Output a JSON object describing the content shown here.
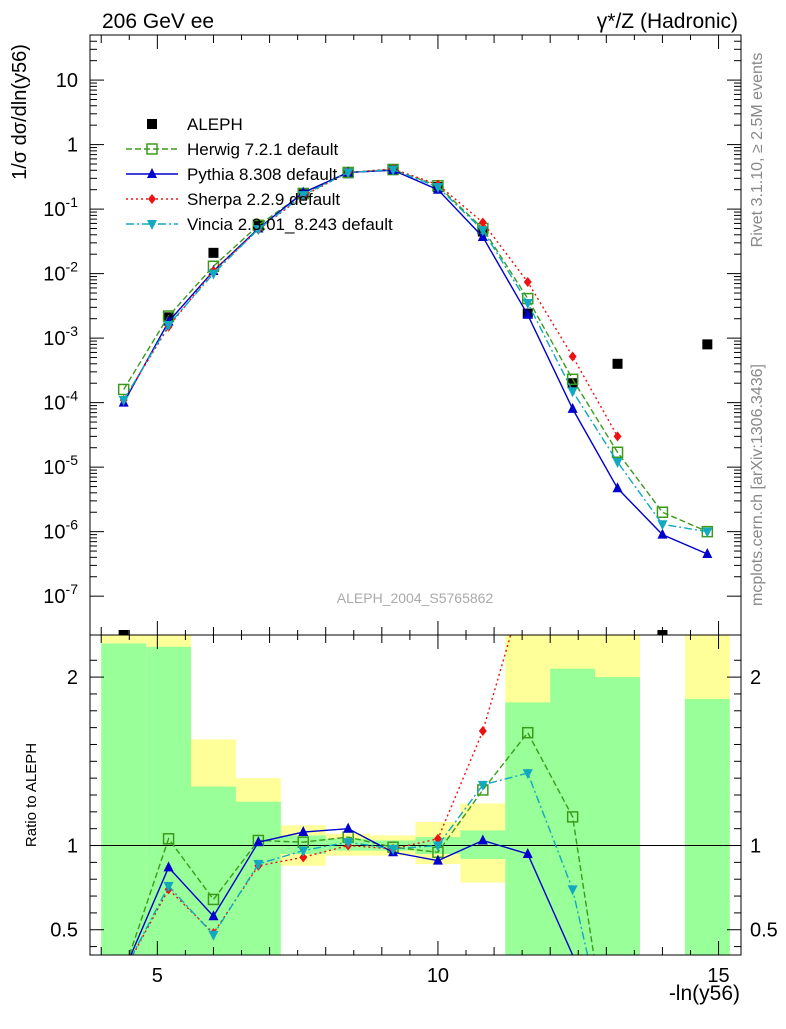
{
  "header": {
    "left": "206 GeV ee",
    "right": "γ*/Z (Hadronic)"
  },
  "side_labels": {
    "rivet": "Rivet 3.1.10, ≥ 2.5M events",
    "mcplots": "mcplots.cern.ch [arXiv:1306.3436]"
  },
  "chart_data": [
    {
      "type": "scatter",
      "panel": "main",
      "ylabel": "1/σ  dσ/dln(y56)",
      "yscale": "log",
      "ylim": [
        2.5e-08,
        50
      ],
      "xlim": [
        3.8,
        15.4
      ],
      "yticks": [
        1e-07,
        1e-06,
        1e-05,
        0.0001,
        0.001,
        0.01,
        0.1,
        1,
        10
      ],
      "ytick_labels": [
        "10^-7",
        "10^-6",
        "10^-5",
        "10^-4",
        "10^-3",
        "10^-2",
        "10^-1",
        "1",
        "10"
      ],
      "watermark": "ALEPH_2004_S5765862",
      "legend_position": "top-left",
      "series": [
        {
          "name": "ALEPH",
          "color": "#000000",
          "marker": "square-filled",
          "x": [
            4.4,
            5.2,
            6.0,
            6.8,
            7.6,
            8.4,
            9.2,
            10.0,
            10.8,
            11.6,
            12.4,
            13.2,
            14.0,
            14.8
          ],
          "y": [
            2.5e-08,
            0.0021,
            0.021,
            0.055,
            0.17,
            0.36,
            0.42,
            0.22,
            0.045,
            0.0024,
            0.0002,
            0.0004,
            2.5e-08,
            0.0008
          ]
        },
        {
          "name": "Herwig 7.2.1 default",
          "color": "#3a9a1a",
          "marker": "square-open",
          "line": "dashed",
          "x": [
            4.4,
            5.2,
            6.0,
            6.8,
            7.6,
            8.4,
            9.2,
            10.0,
            10.8,
            11.6,
            12.4,
            13.2,
            14.0,
            14.8
          ],
          "y": [
            0.00016,
            0.0022,
            0.013,
            0.056,
            0.175,
            0.37,
            0.41,
            0.23,
            0.05,
            0.0041,
            0.00023,
            1.7e-05,
            2e-06,
            1e-06
          ]
        },
        {
          "name": "Pythia 8.308 default",
          "color": "#0000cc",
          "marker": "triangle-up",
          "line": "solid",
          "x": [
            4.4,
            5.2,
            6.0,
            6.8,
            7.6,
            8.4,
            9.2,
            10.0,
            10.8,
            11.6,
            12.4,
            13.2,
            14.0,
            14.8
          ],
          "y": [
            0.0001,
            0.0018,
            0.011,
            0.05,
            0.18,
            0.37,
            0.4,
            0.2,
            0.037,
            0.0023,
            8e-05,
            4.7e-06,
            9e-07,
            4.5e-07
          ]
        },
        {
          "name": "Sherpa 2.2.9 default",
          "color": "#ee1111",
          "marker": "diamond",
          "line": "dotted",
          "x": [
            4.4,
            5.2,
            6.0,
            6.8,
            7.6,
            8.4,
            9.2,
            10.0,
            10.8,
            11.6,
            12.4,
            13.2
          ],
          "y": [
            0.00011,
            0.0015,
            0.011,
            0.048,
            0.16,
            0.37,
            0.42,
            0.24,
            0.062,
            0.0074,
            0.00052,
            3e-05
          ]
        },
        {
          "name": "Vincia 2.3.01_8.243 default",
          "color": "#11a8c0",
          "marker": "triangle-down",
          "line": "dashdot",
          "x": [
            4.4,
            5.2,
            6.0,
            6.8,
            7.6,
            8.4,
            9.2,
            10.0,
            10.8,
            11.6,
            12.4,
            13.2,
            14.0,
            14.8
          ],
          "y": [
            0.00011,
            0.0016,
            0.01,
            0.049,
            0.165,
            0.37,
            0.41,
            0.22,
            0.047,
            0.0035,
            0.00015,
            1.2e-05,
            1.3e-06,
            1e-06
          ]
        }
      ]
    },
    {
      "type": "line",
      "panel": "ratio",
      "ylabel": "Ratio to ALEPH",
      "xlabel": "-ln(y56)",
      "ylim": [
        0.35,
        2.25
      ],
      "yticks": [
        0.5,
        1,
        2
      ],
      "ytick_labels": [
        "0.5",
        "1",
        "2"
      ],
      "xticks": [
        5,
        10,
        15
      ],
      "xtick_labels": [
        "5",
        "10",
        "15"
      ],
      "reference_line": 1,
      "bands": {
        "bin_edges": [
          4.0,
          4.8,
          5.6,
          6.4,
          7.2,
          8.0,
          8.8,
          9.6,
          10.4,
          11.2,
          12.0,
          12.8,
          13.6,
          14.4,
          15.2
        ],
        "yellow": [
          [
            0.35,
            2.25
          ],
          [
            0.35,
            2.25
          ],
          [
            0.43,
            1.63
          ],
          [
            0.74,
            1.4
          ],
          [
            0.88,
            1.12
          ],
          [
            0.94,
            1.07
          ],
          [
            0.94,
            1.06
          ],
          [
            0.89,
            1.14
          ],
          [
            0.78,
            1.25
          ],
          [
            0.35,
            2.25
          ],
          [
            0.35,
            2.25
          ],
          [
            0.35,
            2.25
          ],
          null,
          [
            0.35,
            2.25
          ]
        ],
        "green": [
          [
            0.35,
            2.2
          ],
          [
            0.35,
            2.18
          ],
          [
            0.35,
            1.35
          ],
          [
            0.35,
            1.26
          ],
          [
            0.95,
            1.06
          ],
          [
            0.97,
            1.04
          ],
          [
            0.97,
            1.03
          ],
          [
            0.95,
            1.05
          ],
          [
            0.92,
            1.09
          ],
          [
            0.35,
            1.85
          ],
          [
            0.35,
            2.05
          ],
          [
            0.35,
            2.0
          ],
          null,
          [
            0.35,
            1.87
          ]
        ]
      },
      "series": [
        {
          "name": "Herwig 7.2.1 default",
          "color": "#3a9a1a",
          "marker": "square-open",
          "line": "dashed",
          "x": [
            4.4,
            5.2,
            6.0,
            6.8,
            7.6,
            8.4,
            9.2,
            10.0,
            10.8,
            11.6,
            12.4,
            12.8
          ],
          "y": [
            0.25,
            1.04,
            0.68,
            1.03,
            1.02,
            1.05,
            0.99,
            0.96,
            1.33,
            1.67,
            1.17,
            0.3
          ]
        },
        {
          "name": "Pythia 8.308 default",
          "color": "#0000cc",
          "marker": "triangle-up",
          "line": "solid",
          "x": [
            4.4,
            5.2,
            6.0,
            6.8,
            7.6,
            8.4,
            9.2,
            10.0,
            10.8,
            11.6,
            12.4
          ],
          "y": [
            0.25,
            0.87,
            0.58,
            1.02,
            1.08,
            1.1,
            0.96,
            0.91,
            1.03,
            0.95,
            0.35
          ]
        },
        {
          "name": "Sherpa 2.2.9 default",
          "color": "#ee1111",
          "marker": "diamond",
          "line": "dotted",
          "x": [
            4.4,
            5.2,
            6.0,
            6.8,
            7.6,
            8.4,
            9.2,
            10.0,
            10.8,
            11.6
          ],
          "y": [
            0.25,
            0.74,
            0.48,
            0.88,
            0.93,
            1.0,
            0.98,
            1.04,
            1.68,
            2.6
          ]
        },
        {
          "name": "Vincia 2.3.01_8.243 default",
          "color": "#11a8c0",
          "marker": "triangle-down",
          "line": "dashdot",
          "x": [
            4.4,
            5.2,
            6.0,
            6.8,
            7.6,
            8.4,
            9.2,
            10.0,
            10.8,
            11.6,
            12.4,
            12.7
          ],
          "y": [
            0.25,
            0.76,
            0.47,
            0.89,
            0.97,
            1.02,
            0.98,
            1.0,
            1.36,
            1.43,
            0.74,
            0.3
          ]
        }
      ]
    }
  ]
}
